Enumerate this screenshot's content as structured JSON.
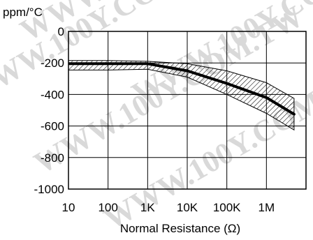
{
  "chart_data": {
    "type": "line",
    "ylabel": "ppm/°C",
    "xlabel": "Normal Resistance (Ω)",
    "x_scale": "log",
    "x_ticks": [
      "10",
      "100",
      "1K",
      "10K",
      "100K",
      "1M"
    ],
    "x_tick_values": [
      10,
      100,
      1000,
      10000,
      100000,
      1000000
    ],
    "xlim": [
      10,
      10000000
    ],
    "y_ticks": [
      "0",
      "-200",
      "-400",
      "-600",
      "-800",
      "-1000"
    ],
    "y_tick_values": [
      0,
      -200,
      -400,
      -600,
      -800,
      -1000
    ],
    "ylim": [
      -1000,
      0
    ],
    "grid": true,
    "watermark": "WWW.100Y.COM.TW",
    "series": [
      {
        "style": "solid-thick",
        "color": "#000000",
        "x": [
          10,
          100,
          1000,
          10000,
          100000,
          1000000,
          5000000
        ],
        "y": [
          -205,
          -205,
          -205,
          -250,
          -330,
          -420,
          -525
        ]
      }
    ],
    "band": {
      "style": "hatched",
      "x": [
        10,
        100,
        1000,
        10000,
        100000,
        1000000,
        5000000
      ],
      "upper": [
        -185,
        -185,
        -190,
        -205,
        -250,
        -325,
        -425
      ],
      "lower": [
        -245,
        -245,
        -240,
        -290,
        -400,
        -520,
        -625
      ]
    }
  }
}
